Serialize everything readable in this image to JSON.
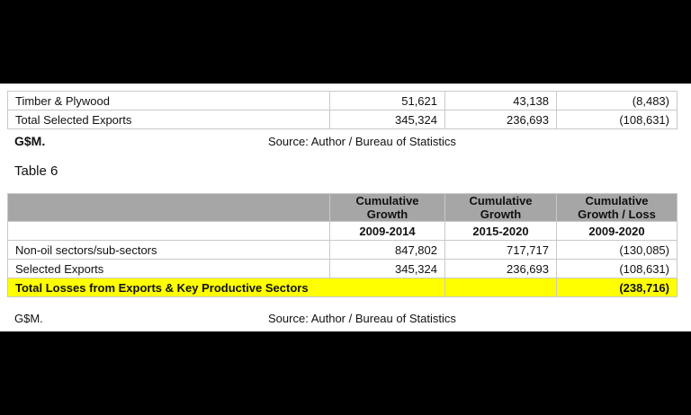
{
  "top_table": {
    "rows": [
      {
        "label": "Timber & Plywood",
        "v1": "51,621",
        "v2": "43,138",
        "v3": "(8,483)"
      },
      {
        "label": "Total Selected Exports",
        "v1": "345,324",
        "v2": "236,693",
        "v3": "(108,631)"
      }
    ],
    "unit": "G$M.",
    "source": "Source: Author / Bureau of Statistics"
  },
  "table6": {
    "title": "Table 6",
    "headers": [
      "Cumulative Growth",
      "Cumulative Growth",
      "Cumulative Growth / Loss"
    ],
    "periods": [
      "2009-2014",
      "2015-2020",
      "2009-2020"
    ],
    "rows": [
      {
        "label": "Non-oil sectors/sub-sectors",
        "v1": "847,802",
        "v2": "717,717",
        "v3": "(130,085)"
      },
      {
        "label": "Selected Exports",
        "v1": "345,324",
        "v2": "236,693",
        "v3": "(108,631)"
      }
    ],
    "total": {
      "label": "Total Losses from Exports & Key Productive Sectors",
      "v3": "(238,716)"
    },
    "unit": "G$M.",
    "source": "Source: Author / Bureau of Statistics"
  },
  "colors": {
    "highlight": "#ffff00",
    "header": "#a6a6a6",
    "border": "#c9c9c9"
  }
}
